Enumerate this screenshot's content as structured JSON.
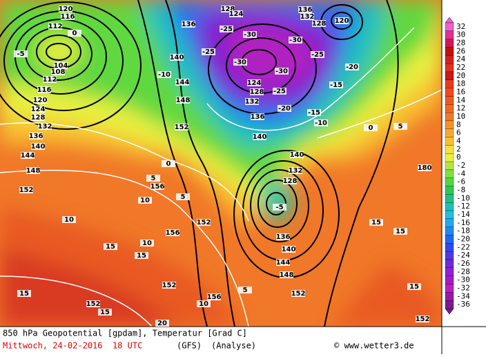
{
  "colorbar": {
    "labels": [
      32,
      30,
      28,
      26,
      24,
      22,
      20,
      18,
      16,
      14,
      12,
      10,
      8,
      6,
      4,
      2,
      0,
      -2,
      -4,
      -6,
      -8,
      -10,
      -12,
      -14,
      -16,
      -18,
      -20,
      -22,
      -24,
      -26,
      -28,
      -30,
      -32,
      -34,
      -36
    ],
    "colors": [
      "#f060d0",
      "#e03090",
      "#d01850",
      "#c01010",
      "#d02020",
      "#e03020",
      "#c81818",
      "#e83820",
      "#f04820",
      "#f05820",
      "#f06820",
      "#f07828",
      "#f89028",
      "#f8a830",
      "#f8c030",
      "#f8e040",
      "#e8f040",
      "#b0e840",
      "#80e040",
      "#50d840",
      "#30c850",
      "#20c080",
      "#20c0b0",
      "#20c0e0",
      "#20a8f0",
      "#2088f0",
      "#2068f0",
      "#3048e8",
      "#5038e0",
      "#7028d8",
      "#9020d0",
      "#a818c8",
      "#b820c0",
      "#9818a8",
      "#801890"
    ]
  },
  "map_labels": [
    "120",
    "116",
    "112",
    "0",
    "-5",
    "104",
    "108",
    "112",
    "116",
    "120",
    "124",
    "128",
    "132",
    "136",
    "140",
    "144",
    "148",
    "152",
    "10",
    "15",
    "15",
    "152",
    "15",
    "20",
    "152",
    "156",
    "10",
    "5",
    "144",
    "148",
    "152",
    "140",
    "136",
    "128",
    "132",
    "140",
    "-5",
    "15",
    "15",
    "15",
    "152",
    "180",
    "5",
    "0",
    "-10",
    "-15",
    "-20",
    "-25",
    "-30",
    "-30",
    "-30",
    "-25",
    "-25",
    "124",
    "128",
    "132",
    "136",
    "140",
    "136",
    "140",
    "144",
    "148",
    "152",
    "128",
    "124",
    "120",
    "136",
    "132",
    "128",
    "-15",
    "-20",
    "-25",
    "-30",
    "-10",
    "0",
    "5",
    "10",
    "156",
    "152",
    "156",
    "10",
    "15",
    "5"
  ],
  "footer": {
    "line1": "850 hPa Geopotential [gpdam], Temperatur [Grad C]",
    "date": "Mittwoch, 24-02-2016  18 UTC",
    "model": "(GFS)",
    "run": "(Analyse)",
    "credit": "© www.wetter3.de"
  }
}
